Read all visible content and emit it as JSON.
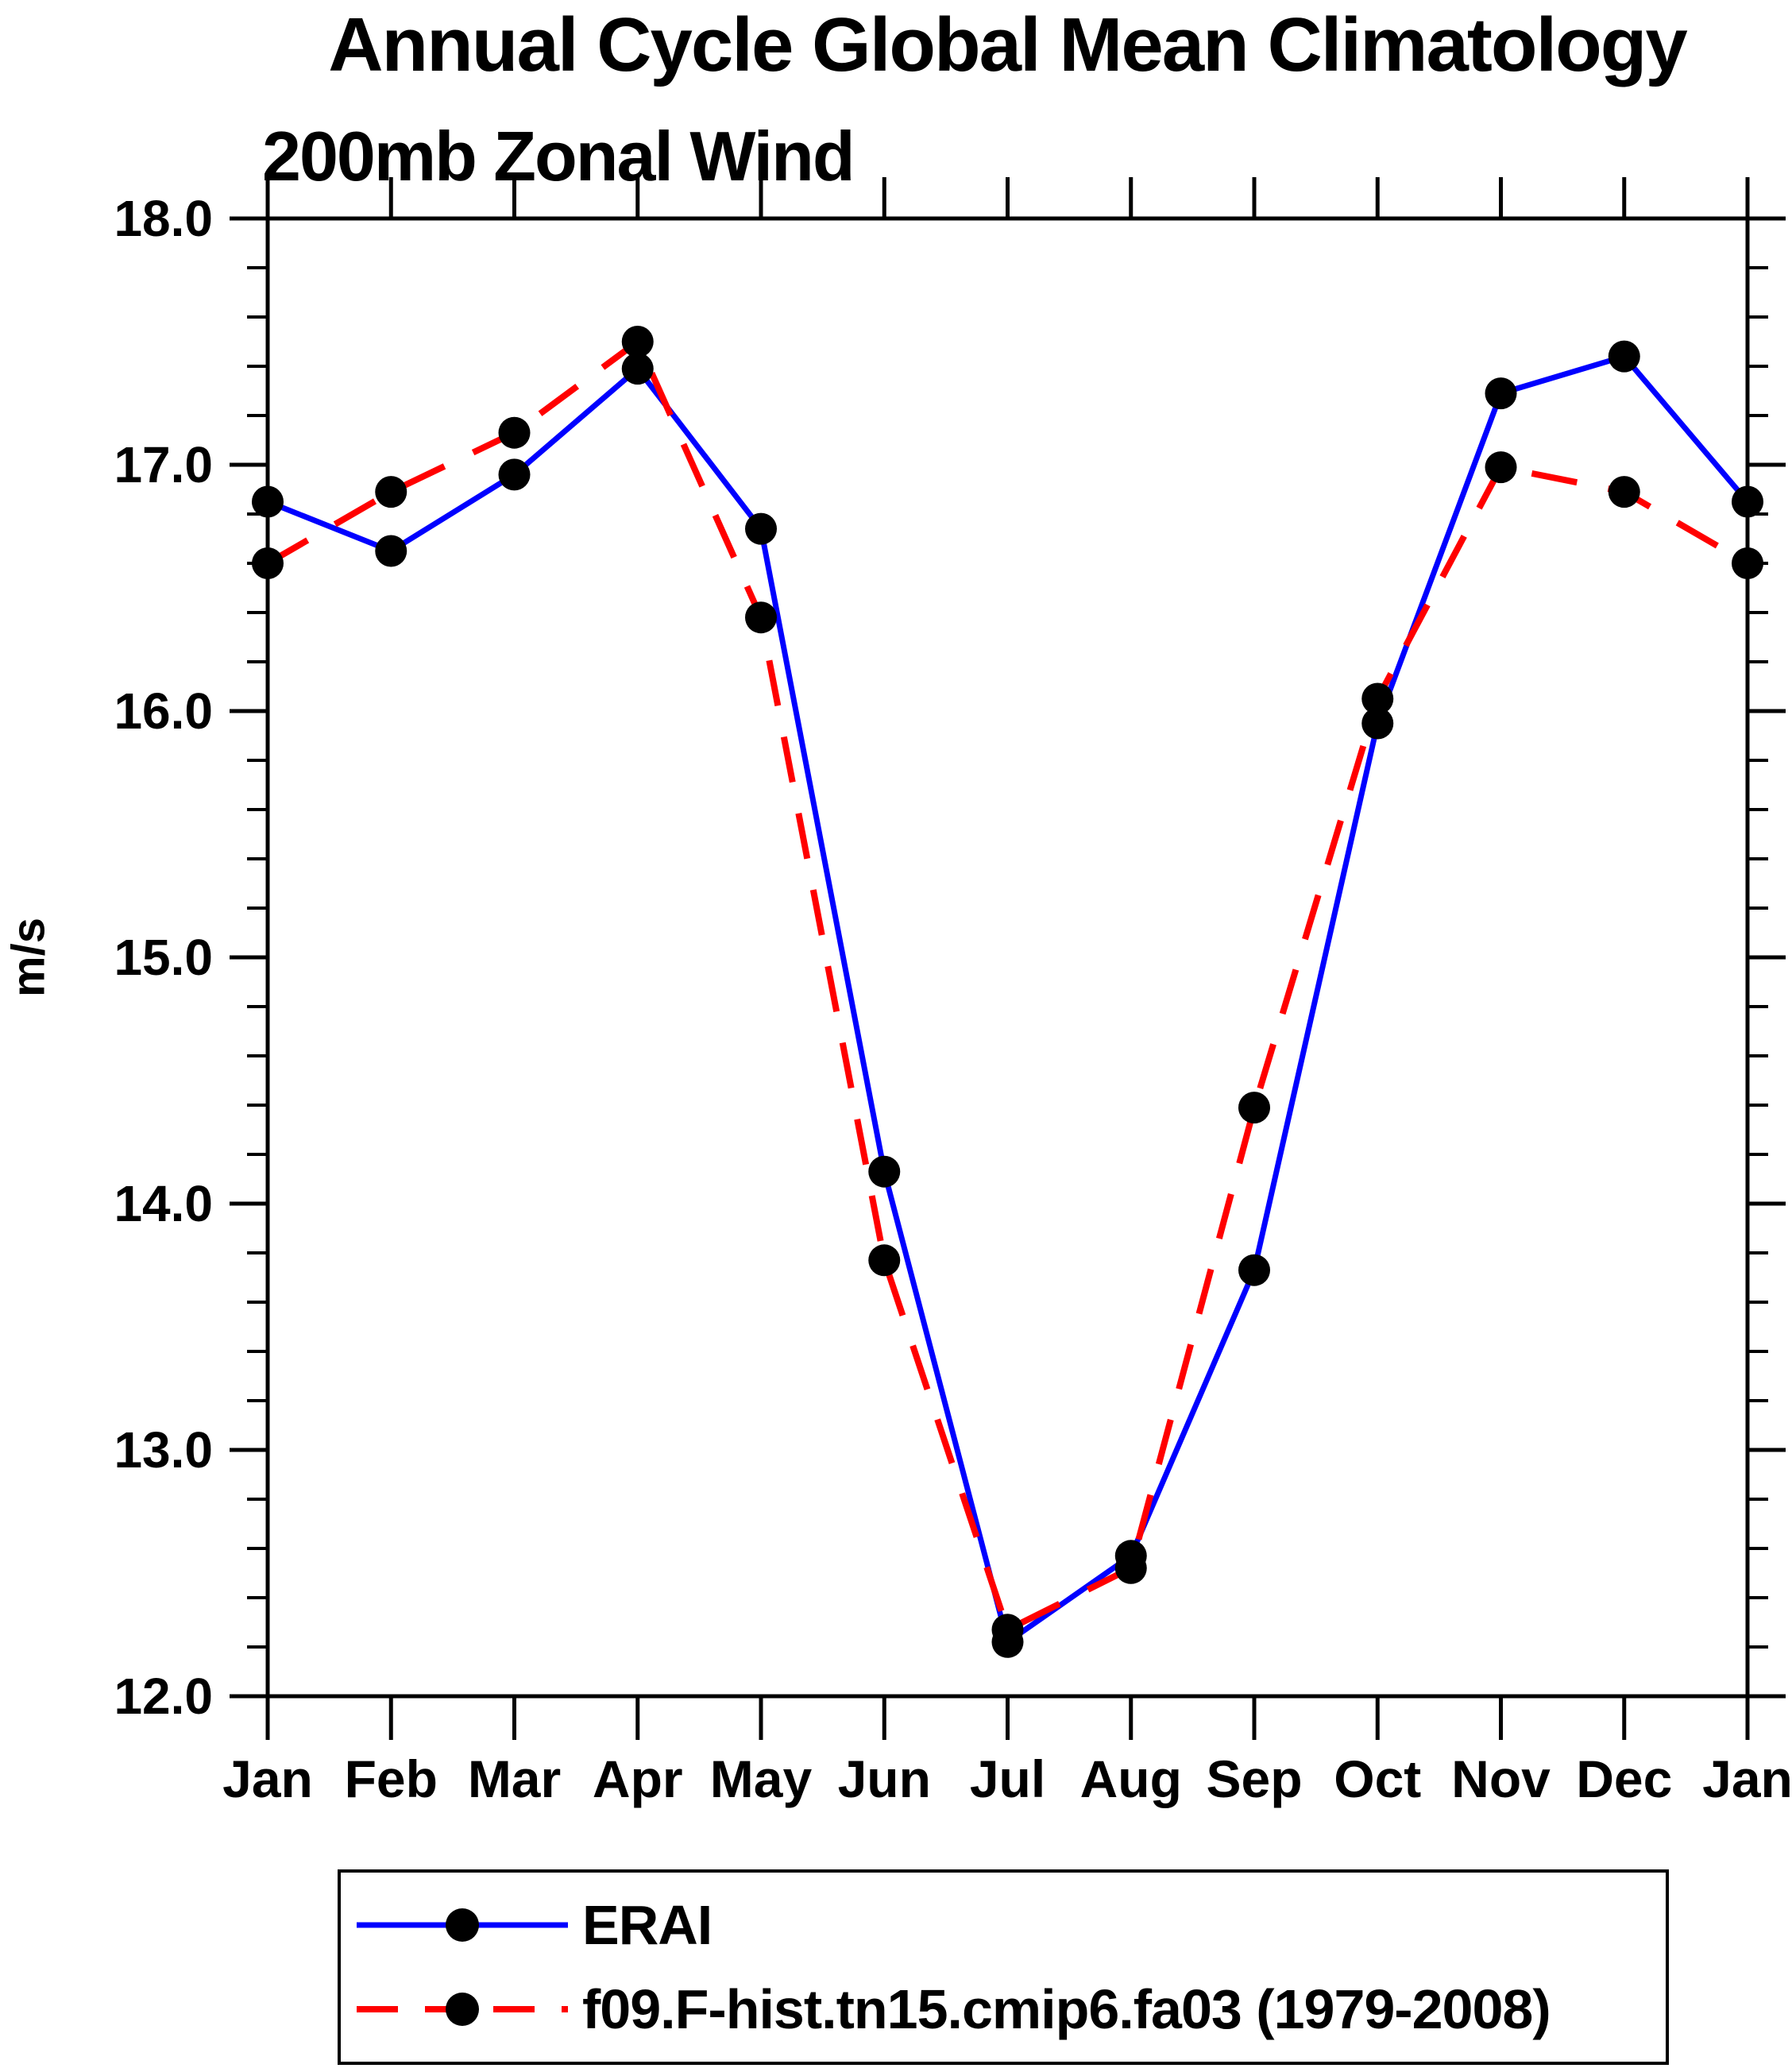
{
  "title": "Annual Cycle Global Mean Climatology",
  "subtitle": "200mb Zonal Wind",
  "chart_data": {
    "type": "line",
    "x_categories": [
      "Jan",
      "Feb",
      "Mar",
      "Apr",
      "May",
      "Jun",
      "Jul",
      "Aug",
      "Sep",
      "Oct",
      "Nov",
      "Dec",
      "Jan"
    ],
    "ylabel": "m/s",
    "ylim": [
      12.0,
      18.0
    ],
    "y_major_tick_step": 1.0,
    "y_minor_tick_step": 0.2,
    "y_tick_labels": [
      "12.0",
      "13.0",
      "14.0",
      "15.0",
      "16.0",
      "17.0",
      "18.0"
    ],
    "grid": false,
    "legend_position": "below-plot",
    "marker_color": "#000000",
    "series": [
      {
        "name": "ERAI",
        "color": "#0000ff",
        "style": "solid",
        "marker": "filled-circle",
        "values": [
          16.85,
          16.65,
          16.96,
          17.39,
          16.74,
          14.13,
          12.22,
          12.57,
          13.73,
          15.95,
          17.29,
          17.44,
          16.85
        ]
      },
      {
        "name": "f09.F-hist.tn15.cmip6.fa03 (1979-2008)",
        "color": "#ff0000",
        "style": "dashed",
        "marker": "filled-circle",
        "values": [
          16.6,
          16.89,
          17.13,
          17.5,
          16.38,
          13.77,
          12.27,
          12.52,
          14.39,
          16.05,
          16.99,
          16.89,
          16.6
        ]
      }
    ]
  }
}
